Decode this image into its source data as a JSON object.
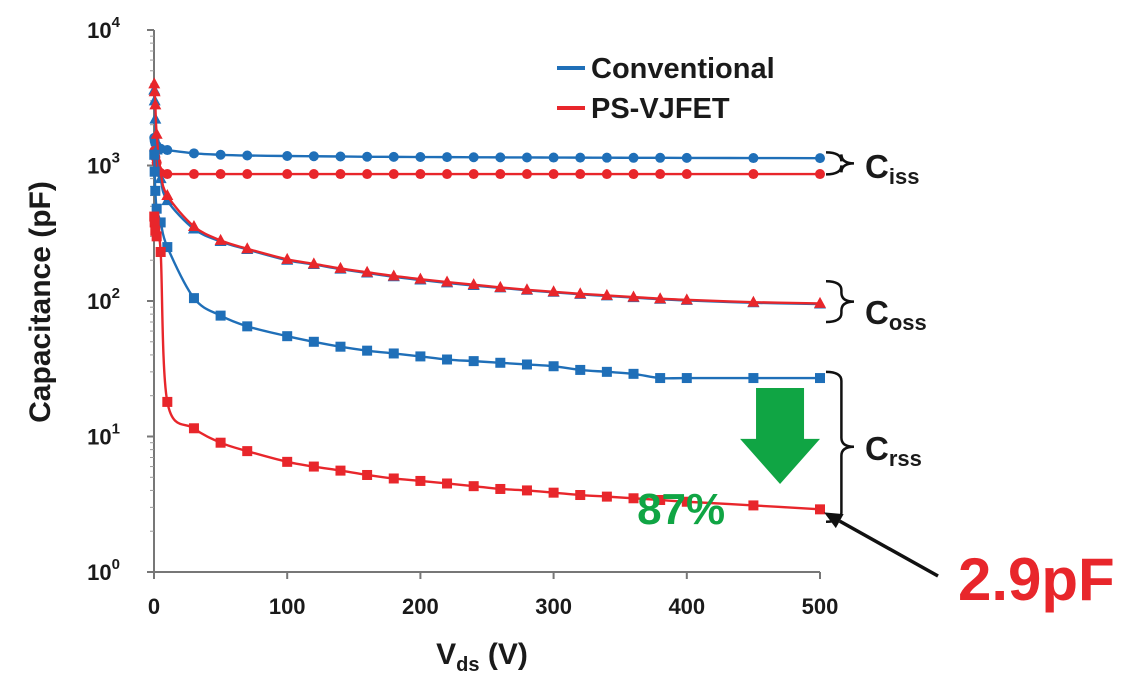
{
  "chart_data": {
    "type": "line",
    "title": "",
    "xlabel": {
      "main": "V",
      "sub": "ds",
      "unit": " (V)"
    },
    "ylabel": "Capacitance (pF)",
    "xlim": [
      0,
      500
    ],
    "ylim_log10": [
      0,
      4
    ],
    "yscale": "log",
    "xticks": [
      0,
      100,
      200,
      300,
      400,
      500
    ],
    "yticks": [
      {
        "base": "10",
        "exp": "0",
        "value": 1
      },
      {
        "base": "10",
        "exp": "1",
        "value": 10
      },
      {
        "base": "10",
        "exp": "2",
        "value": 100
      },
      {
        "base": "10",
        "exp": "3",
        "value": 1000
      },
      {
        "base": "10",
        "exp": "4",
        "value": 10000
      }
    ],
    "legend": {
      "placement": "top-right",
      "entries": [
        {
          "name": "Conventional",
          "color": "#1f6fb8"
        },
        {
          "name": "PS-VJFET",
          "color": "#e8262b"
        }
      ]
    },
    "series": [
      {
        "name": "Conventional Ciss",
        "legend": "Conventional",
        "color": "#1f6fb8",
        "marker": "circle",
        "points": [
          [
            0.2,
            1600
          ],
          [
            0.5,
            1520
          ],
          [
            1,
            1450
          ],
          [
            2,
            1400
          ],
          [
            5,
            1330
          ],
          [
            10,
            1300
          ],
          [
            30,
            1230
          ],
          [
            50,
            1200
          ],
          [
            70,
            1185
          ],
          [
            100,
            1175
          ],
          [
            120,
            1170
          ],
          [
            140,
            1165
          ],
          [
            160,
            1160
          ],
          [
            180,
            1158
          ],
          [
            200,
            1155
          ],
          [
            220,
            1153
          ],
          [
            240,
            1150
          ],
          [
            260,
            1148
          ],
          [
            280,
            1146
          ],
          [
            300,
            1145
          ],
          [
            320,
            1143
          ],
          [
            340,
            1142
          ],
          [
            360,
            1140
          ],
          [
            380,
            1140
          ],
          [
            400,
            1138
          ],
          [
            450,
            1135
          ],
          [
            500,
            1133
          ]
        ]
      },
      {
        "name": "PS-VJFET Ciss",
        "legend": "PS-VJFET",
        "color": "#e8262b",
        "marker": "circle",
        "points": [
          [
            0.2,
            1280
          ],
          [
            0.5,
            1220
          ],
          [
            1,
            1150
          ],
          [
            2,
            1050
          ],
          [
            5,
            880
          ],
          [
            10,
            865
          ],
          [
            30,
            865
          ],
          [
            50,
            865
          ],
          [
            70,
            865
          ],
          [
            100,
            865
          ],
          [
            120,
            865
          ],
          [
            140,
            865
          ],
          [
            160,
            865
          ],
          [
            180,
            865
          ],
          [
            200,
            865
          ],
          [
            220,
            865
          ],
          [
            240,
            865
          ],
          [
            260,
            865
          ],
          [
            280,
            865
          ],
          [
            300,
            865
          ],
          [
            320,
            865
          ],
          [
            340,
            865
          ],
          [
            360,
            865
          ],
          [
            380,
            865
          ],
          [
            400,
            865
          ],
          [
            450,
            865
          ],
          [
            500,
            865
          ]
        ]
      },
      {
        "name": "Conventional Coss",
        "legend": "Conventional",
        "color": "#1f6fb8",
        "marker": "triangle",
        "points": [
          [
            0.2,
            3600
          ],
          [
            0.5,
            3000
          ],
          [
            1,
            2200
          ],
          [
            2,
            1300
          ],
          [
            5,
            800
          ],
          [
            10,
            550
          ],
          [
            30,
            340
          ],
          [
            50,
            275
          ],
          [
            70,
            240
          ],
          [
            100,
            200
          ],
          [
            120,
            186
          ],
          [
            140,
            172
          ],
          [
            160,
            161
          ],
          [
            180,
            151
          ],
          [
            200,
            143
          ],
          [
            220,
            136
          ],
          [
            240,
            130
          ],
          [
            260,
            125
          ],
          [
            280,
            120
          ],
          [
            300,
            116
          ],
          [
            320,
            112
          ],
          [
            340,
            109
          ],
          [
            360,
            106
          ],
          [
            380,
            103
          ],
          [
            400,
            101
          ],
          [
            450,
            97
          ],
          [
            500,
            95
          ]
        ]
      },
      {
        "name": "PS-VJFET Coss",
        "legend": "PS-VJFET",
        "color": "#e8262b",
        "marker": "triangle",
        "points": [
          [
            0.2,
            4000
          ],
          [
            0.5,
            3500
          ],
          [
            1,
            2800
          ],
          [
            2,
            1700
          ],
          [
            5,
            900
          ],
          [
            10,
            600
          ],
          [
            30,
            355
          ],
          [
            50,
            280
          ],
          [
            70,
            243
          ],
          [
            100,
            203
          ],
          [
            120,
            188
          ],
          [
            140,
            174
          ],
          [
            160,
            163
          ],
          [
            180,
            153
          ],
          [
            200,
            145
          ],
          [
            220,
            138
          ],
          [
            240,
            132
          ],
          [
            260,
            126
          ],
          [
            280,
            121
          ],
          [
            300,
            117
          ],
          [
            320,
            113
          ],
          [
            340,
            110
          ],
          [
            360,
            107
          ],
          [
            380,
            104
          ],
          [
            400,
            102
          ],
          [
            450,
            98
          ],
          [
            500,
            96
          ]
        ]
      },
      {
        "name": "Conventional Crss",
        "legend": "Conventional",
        "color": "#1f6fb8",
        "marker": "square",
        "points": [
          [
            0.2,
            1200
          ],
          [
            0.5,
            900
          ],
          [
            1,
            650
          ],
          [
            2,
            480
          ],
          [
            5,
            380
          ],
          [
            10,
            250
          ],
          [
            30,
            105
          ],
          [
            50,
            78
          ],
          [
            70,
            65
          ],
          [
            100,
            55
          ],
          [
            120,
            50
          ],
          [
            140,
            46
          ],
          [
            160,
            43
          ],
          [
            180,
            41
          ],
          [
            200,
            39
          ],
          [
            220,
            37
          ],
          [
            240,
            36
          ],
          [
            260,
            35
          ],
          [
            280,
            34
          ],
          [
            300,
            33
          ],
          [
            320,
            31
          ],
          [
            340,
            30
          ],
          [
            360,
            29
          ],
          [
            380,
            27
          ],
          [
            400,
            27
          ],
          [
            450,
            27
          ],
          [
            500,
            27
          ]
        ]
      },
      {
        "name": "PS-VJFET Crss",
        "legend": "PS-VJFET",
        "color": "#e8262b",
        "marker": "square",
        "points": [
          [
            0.2,
            420
          ],
          [
            0.5,
            380
          ],
          [
            1,
            330
          ],
          [
            2,
            300
          ],
          [
            5,
            230
          ],
          [
            10,
            18
          ],
          [
            30,
            11.5
          ],
          [
            50,
            9
          ],
          [
            70,
            7.8
          ],
          [
            100,
            6.5
          ],
          [
            120,
            6
          ],
          [
            140,
            5.6
          ],
          [
            160,
            5.2
          ],
          [
            180,
            4.9
          ],
          [
            200,
            4.7
          ],
          [
            220,
            4.5
          ],
          [
            240,
            4.3
          ],
          [
            260,
            4.1
          ],
          [
            280,
            4
          ],
          [
            300,
            3.85
          ],
          [
            320,
            3.7
          ],
          [
            340,
            3.6
          ],
          [
            360,
            3.5
          ],
          [
            380,
            3.4
          ],
          [
            400,
            3.3
          ],
          [
            450,
            3.1
          ],
          [
            500,
            2.9
          ]
        ]
      }
    ],
    "annotations": {
      "groups": [
        {
          "base": "C",
          "sub": "iss",
          "range": [
            860,
            1250
          ]
        },
        {
          "base": "C",
          "sub": "oss",
          "range": [
            70,
            140
          ]
        },
        {
          "base": "C",
          "sub": "rss",
          "range": [
            2.35,
            30
          ]
        }
      ],
      "reduction": {
        "text": "87%",
        "color": "#10a544",
        "from": 27,
        "to": 3.4,
        "x_range": [
          440,
          500
        ]
      },
      "callout": {
        "text": "2.9pF",
        "color": "#e8262b",
        "target": [
          500,
          2.9
        ]
      }
    }
  }
}
